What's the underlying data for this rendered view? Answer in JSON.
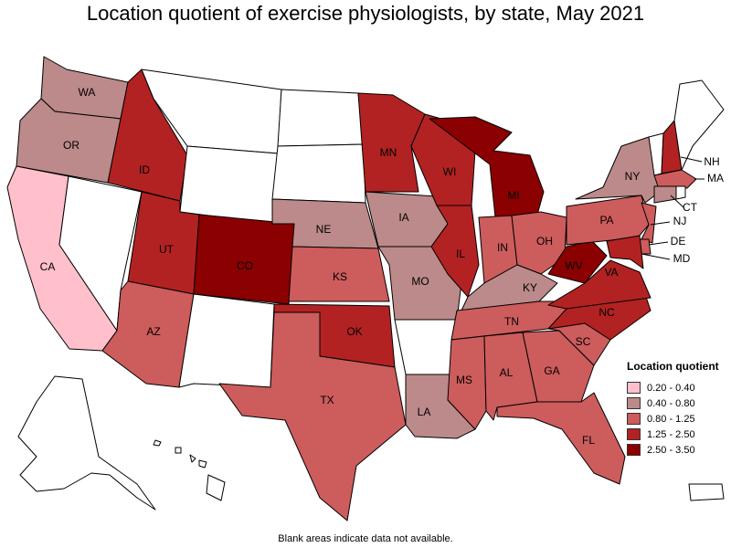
{
  "title": "Location quotient of exercise physiologists, by state, May 2021",
  "footnote": "Blank areas indicate data not available.",
  "legend": {
    "title": "Location quotient",
    "items": [
      {
        "label": "0.20 - 0.40",
        "color": "#ffc0cb"
      },
      {
        "label": "0.40 - 0.80",
        "color": "#bc8a8a"
      },
      {
        "label": "0.80 - 1.25",
        "color": "#cd5c5c"
      },
      {
        "label": "1.25 - 2.50",
        "color": "#b22222"
      },
      {
        "label": "2.50 - 3.50",
        "color": "#8b0000"
      }
    ]
  },
  "states": [
    {
      "abbr": "WA",
      "label": "WA",
      "category": "0.40 - 0.80"
    },
    {
      "abbr": "OR",
      "label": "OR",
      "category": "0.40 - 0.80"
    },
    {
      "abbr": "CA",
      "label": "CA",
      "category": "0.20 - 0.40"
    },
    {
      "abbr": "NV",
      "label": "",
      "category": null
    },
    {
      "abbr": "ID",
      "label": "ID",
      "category": "1.25 - 2.50"
    },
    {
      "abbr": "MT",
      "label": "",
      "category": null
    },
    {
      "abbr": "WY",
      "label": "",
      "category": null
    },
    {
      "abbr": "UT",
      "label": "UT",
      "category": "1.25 - 2.50"
    },
    {
      "abbr": "AZ",
      "label": "AZ",
      "category": "0.80 - 1.25"
    },
    {
      "abbr": "CO",
      "label": "CO",
      "category": "2.50 - 3.50"
    },
    {
      "abbr": "NM",
      "label": "",
      "category": null
    },
    {
      "abbr": "ND",
      "label": "",
      "category": null
    },
    {
      "abbr": "SD",
      "label": "",
      "category": null
    },
    {
      "abbr": "NE",
      "label": "NE",
      "category": "0.40 - 0.80"
    },
    {
      "abbr": "KS",
      "label": "KS",
      "category": "0.80 - 1.25"
    },
    {
      "abbr": "OK",
      "label": "OK",
      "category": "1.25 - 2.50"
    },
    {
      "abbr": "TX",
      "label": "TX",
      "category": "0.80 - 1.25"
    },
    {
      "abbr": "MN",
      "label": "MN",
      "category": "1.25 - 2.50"
    },
    {
      "abbr": "IA",
      "label": "IA",
      "category": "0.40 - 0.80"
    },
    {
      "abbr": "MO",
      "label": "MO",
      "category": "0.40 - 0.80"
    },
    {
      "abbr": "AR",
      "label": "",
      "category": null
    },
    {
      "abbr": "LA",
      "label": "LA",
      "category": "0.40 - 0.80"
    },
    {
      "abbr": "WI",
      "label": "WI",
      "category": "1.25 - 2.50"
    },
    {
      "abbr": "IL",
      "label": "IL",
      "category": "1.25 - 2.50"
    },
    {
      "abbr": "MI",
      "label": "MI",
      "category": "2.50 - 3.50"
    },
    {
      "abbr": "IN",
      "label": "IN",
      "category": "0.80 - 1.25"
    },
    {
      "abbr": "OH",
      "label": "OH",
      "category": "0.80 - 1.25"
    },
    {
      "abbr": "KY",
      "label": "KY",
      "category": "0.40 - 0.80"
    },
    {
      "abbr": "TN",
      "label": "TN",
      "category": "0.80 - 1.25"
    },
    {
      "abbr": "MS",
      "label": "MS",
      "category": "0.80 - 1.25"
    },
    {
      "abbr": "AL",
      "label": "AL",
      "category": "0.80 - 1.25"
    },
    {
      "abbr": "GA",
      "label": "GA",
      "category": "0.80 - 1.25"
    },
    {
      "abbr": "FL",
      "label": "FL",
      "category": "0.80 - 1.25"
    },
    {
      "abbr": "SC",
      "label": "SC",
      "category": "0.80 - 1.25"
    },
    {
      "abbr": "NC",
      "label": "NC",
      "category": "1.25 - 2.50"
    },
    {
      "abbr": "VA",
      "label": "VA",
      "category": "1.25 - 2.50"
    },
    {
      "abbr": "WV",
      "label": "WV",
      "category": "2.50 - 3.50"
    },
    {
      "abbr": "PA",
      "label": "PA",
      "category": "0.80 - 1.25"
    },
    {
      "abbr": "NY",
      "label": "NY",
      "category": "0.40 - 0.80"
    },
    {
      "abbr": "VT",
      "label": "",
      "category": null
    },
    {
      "abbr": "NH",
      "label": "NH",
      "category": "1.25 - 2.50"
    },
    {
      "abbr": "ME",
      "label": "",
      "category": null
    },
    {
      "abbr": "MA",
      "label": "MA",
      "category": "0.80 - 1.25"
    },
    {
      "abbr": "CT",
      "label": "CT",
      "category": "0.40 - 0.80"
    },
    {
      "abbr": "RI",
      "label": "",
      "category": null
    },
    {
      "abbr": "NJ",
      "label": "NJ",
      "category": "0.80 - 1.25"
    },
    {
      "abbr": "DE",
      "label": "DE",
      "category": "0.80 - 1.25"
    },
    {
      "abbr": "MD",
      "label": "MD",
      "category": "1.25 - 2.50"
    },
    {
      "abbr": "AK",
      "label": "",
      "category": null
    },
    {
      "abbr": "HI",
      "label": "",
      "category": null
    },
    {
      "abbr": "PR",
      "label": "",
      "category": null
    }
  ]
}
